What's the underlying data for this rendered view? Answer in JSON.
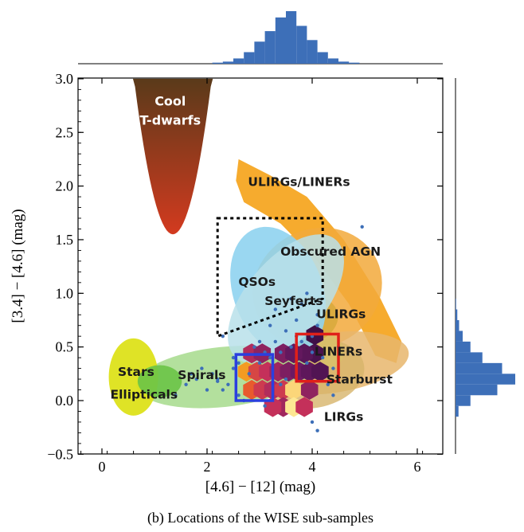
{
  "chart_data": {
    "type": "scatter",
    "title": "",
    "caption": "(b) Locations of the WISE sub-samples",
    "xlabel": "[4.6] − [12] (mag)",
    "ylabel": "[3.4] − [4.6] (mag)",
    "xlim": [
      -0.4,
      6.6
    ],
    "ylim": [
      -0.5,
      3.0
    ],
    "xticks": [
      0,
      2,
      4,
      6
    ],
    "xtick_labels": [
      "0",
      "2",
      "4",
      "6"
    ],
    "yticks": [
      -0.5,
      0.0,
      0.5,
      1.0,
      1.5,
      2.0,
      2.5,
      3.0
    ],
    "ytick_labels": [
      "−0.5",
      "0.0",
      "0.5",
      "1.0",
      "1.5",
      "2.0",
      "2.5",
      "3.0"
    ],
    "grid": false,
    "regions": [
      {
        "label": "Cool\nT-dwarfs",
        "color_top": "#5a3a1a",
        "color_bottom": "#d33a1f"
      },
      {
        "label": "ULIRGs/LINERs",
        "color": "#f5a623"
      },
      {
        "label": "Obscured AGN",
        "color": "#f2a93b"
      },
      {
        "label": "QSOs",
        "color": "#8fd3f0"
      },
      {
        "label": "Seyferts",
        "color": "#b9e0ea"
      },
      {
        "label": "ULIRGs",
        "color": "#d6a93a"
      },
      {
        "label": "LINERs",
        "color": "#d8c06a"
      },
      {
        "label": "Starburst",
        "color": "#d7b46a"
      },
      {
        "label": "LIRGs",
        "color": "#e8b66c"
      },
      {
        "label": "Spirals",
        "color": "#a6db8c"
      },
      {
        "label": "Stars",
        "color": "#dde21a"
      },
      {
        "label": "Ellipticals",
        "color": "#6ac447"
      }
    ],
    "selection_boxes": [
      {
        "name": "dashed black",
        "color": "#000000",
        "x": [
          2.2,
          4.2
        ],
        "y": [
          0.6,
          1.7
        ]
      },
      {
        "name": "blue",
        "color": "#2a3fe0",
        "x": [
          2.55,
          3.25
        ],
        "y": [
          0.0,
          0.43
        ]
      },
      {
        "name": "red",
        "color": "#e0201a",
        "x": [
          3.7,
          4.5
        ],
        "y": [
          0.18,
          0.62
        ]
      }
    ],
    "hexbins": [
      {
        "x": 2.85,
        "y": 0.1,
        "level": 0.7
      },
      {
        "x": 3.05,
        "y": 0.1,
        "level": 0.55
      },
      {
        "x": 2.75,
        "y": 0.27,
        "level": 0.85
      },
      {
        "x": 2.95,
        "y": 0.27,
        "level": 0.6
      },
      {
        "x": 3.15,
        "y": 0.27,
        "level": 0.5
      },
      {
        "x": 2.85,
        "y": 0.44,
        "level": 0.45
      },
      {
        "x": 3.05,
        "y": 0.44,
        "level": 0.35
      },
      {
        "x": 3.25,
        "y": 0.1,
        "level": 0.45
      },
      {
        "x": 3.35,
        "y": 0.27,
        "level": 0.4
      },
      {
        "x": 3.45,
        "y": 0.1,
        "level": 0.55
      },
      {
        "x": 3.65,
        "y": 0.1,
        "level": 0.95
      },
      {
        "x": 3.55,
        "y": 0.27,
        "level": 0.3
      },
      {
        "x": 3.75,
        "y": 0.27,
        "level": 0.25
      },
      {
        "x": 3.45,
        "y": -0.06,
        "level": 0.4
      },
      {
        "x": 3.65,
        "y": -0.06,
        "level": 0.98
      },
      {
        "x": 3.85,
        "y": -0.06,
        "level": 0.5
      },
      {
        "x": 3.95,
        "y": 0.1,
        "level": 0.35
      },
      {
        "x": 3.95,
        "y": 0.27,
        "level": 0.2
      },
      {
        "x": 4.15,
        "y": 0.27,
        "level": 0.15
      },
      {
        "x": 4.05,
        "y": 0.44,
        "level": 0.12
      },
      {
        "x": 3.85,
        "y": 0.44,
        "level": 0.18
      },
      {
        "x": 4.05,
        "y": 0.61,
        "level": 0.08
      },
      {
        "x": 3.25,
        "y": -0.06,
        "level": 0.5
      },
      {
        "x": 3.45,
        "y": 0.44,
        "level": 0.3
      },
      {
        "x": 3.65,
        "y": 0.44,
        "level": 0.22
      }
    ],
    "scatter": {
      "color": "#3d6fb8",
      "x": [
        2.2,
        2.4,
        2.5,
        2.6,
        2.8,
        3.0,
        3.2,
        3.4,
        3.6,
        3.8,
        4.0,
        4.2,
        4.4,
        2.3,
        2.7,
        3.1,
        3.5,
        3.9,
        4.3,
        2.1,
        2.9,
        3.3,
        3.7,
        4.1,
        2.5,
        3.2,
        3.8,
        1.6,
        1.8,
        2.0,
        1.7,
        3.3,
        3.6,
        3.9,
        4.1,
        4.5,
        4.95,
        4.0,
        3.5,
        2.3,
        3.0,
        3.7,
        4.4,
        2.6,
        3.4,
        1.4,
        1.9,
        2.2,
        3.1,
        4.0,
        4.1
      ],
      "y": [
        0.2,
        0.15,
        0.3,
        0.05,
        0.25,
        0.35,
        0.4,
        0.45,
        0.5,
        0.55,
        0.6,
        0.4,
        0.3,
        0.1,
        0.0,
        -0.05,
        0.2,
        0.35,
        0.15,
        0.25,
        0.5,
        0.55,
        0.75,
        0.8,
        0.4,
        0.7,
        0.9,
        0.15,
        0.2,
        0.1,
        0.25,
        0.85,
        0.95,
        1.0,
        0.7,
        0.5,
        1.62,
        0.45,
        0.65,
        0.6,
        0.55,
        0.6,
        0.05,
        0.35,
        0.15,
        0.05,
        0.3,
        0.18,
        0.45,
        -0.2,
        -0.28
      ]
    },
    "top_histogram": {
      "color": "#3d6fb8",
      "bin_centers": [
        2.2,
        2.4,
        2.6,
        2.8,
        3.0,
        3.2,
        3.4,
        3.6,
        3.8,
        4.0,
        4.2,
        4.4,
        4.6,
        4.8
      ],
      "relative_counts": [
        0.02,
        0.04,
        0.1,
        0.22,
        0.42,
        0.62,
        0.88,
        1.0,
        0.72,
        0.45,
        0.22,
        0.1,
        0.04,
        0.02
      ]
    },
    "right_histogram": {
      "color": "#3d6fb8",
      "bin_centers": [
        -0.1,
        0.0,
        0.1,
        0.2,
        0.3,
        0.4,
        0.5,
        0.6,
        0.7,
        0.8,
        0.9
      ],
      "relative_counts": [
        0.05,
        0.25,
        0.7,
        1.0,
        0.78,
        0.45,
        0.25,
        0.12,
        0.06,
        0.03,
        0.01
      ]
    }
  }
}
